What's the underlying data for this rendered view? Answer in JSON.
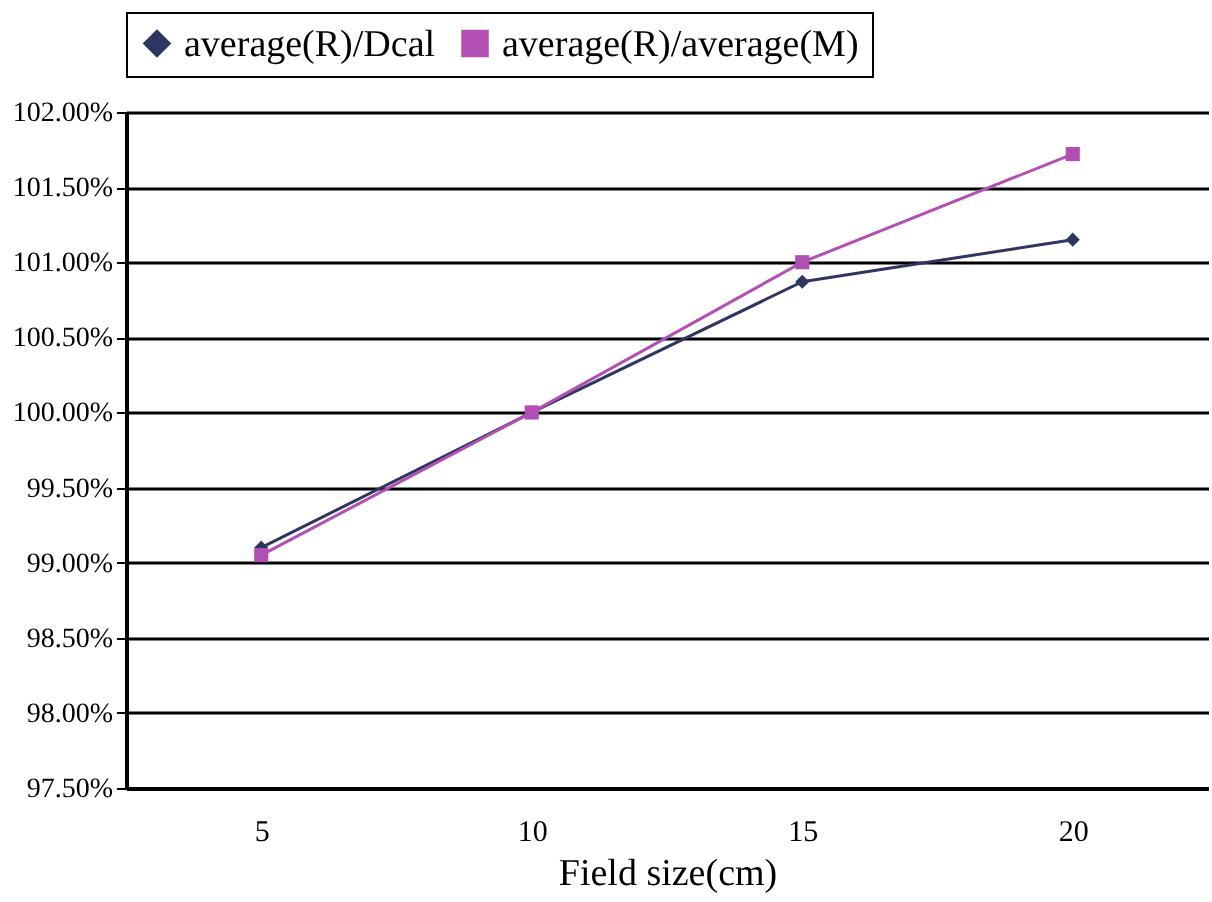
{
  "chart_data": {
    "type": "line",
    "xlabel": "Field size(cm)",
    "categories": [
      "5",
      "10",
      "15",
      "20"
    ],
    "series": [
      {
        "name": "average(R)/Dcal",
        "color": "#2e3560",
        "marker": "diamond",
        "values": [
          99.1,
          100.0,
          100.87,
          101.15
        ]
      },
      {
        "name": "average(R)/average(M)",
        "color": "#b24fb5",
        "marker": "square",
        "values": [
          99.05,
          100.0,
          101.0,
          101.72
        ]
      }
    ],
    "ylim": [
      97.5,
      102
    ],
    "yticks": [
      {
        "value": 97.5,
        "label": "97.50%"
      },
      {
        "value": 98,
        "label": "98.00%"
      },
      {
        "value": 98.5,
        "label": "98.50%"
      },
      {
        "value": 99,
        "label": "99.00%"
      },
      {
        "value": 99.5,
        "label": "99.50%"
      },
      {
        "value": 100,
        "label": "100.00%"
      },
      {
        "value": 100.5,
        "label": "100.50%"
      },
      {
        "value": 101,
        "label": "101.00%"
      },
      {
        "value": 101.5,
        "label": "101.50%"
      },
      {
        "value": 102,
        "label": "102.00%"
      }
    ],
    "grid": "y",
    "legend": "top",
    "line_style": "solid"
  }
}
